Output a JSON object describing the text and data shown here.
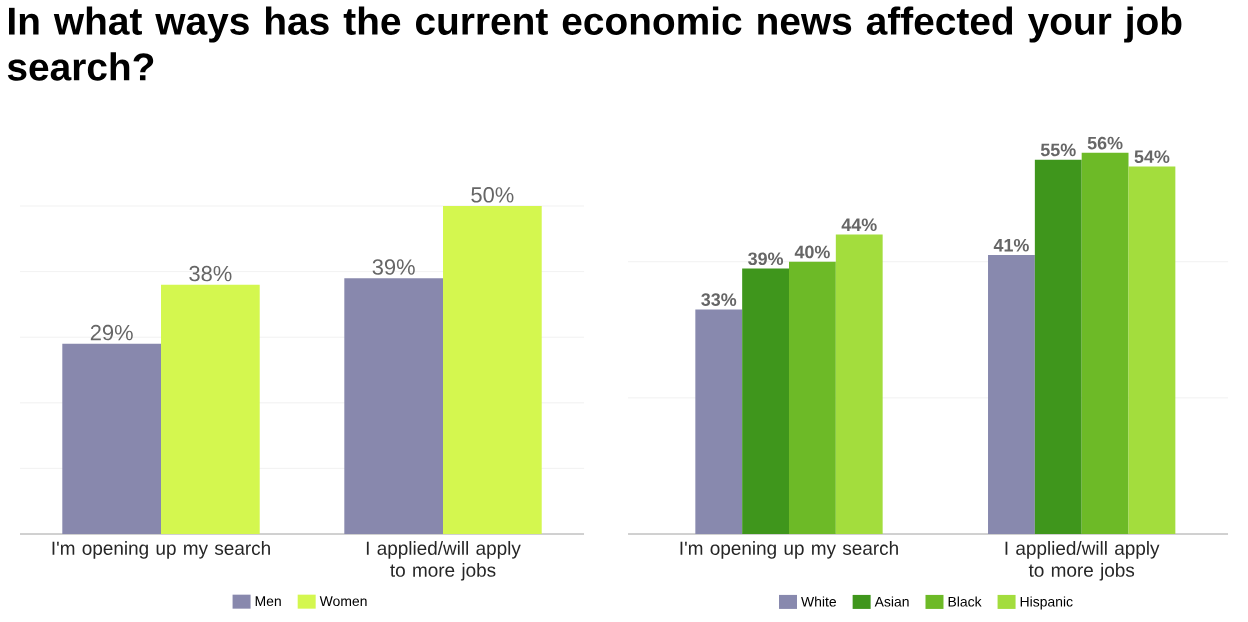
{
  "chart_data": [
    {
      "type": "bar",
      "title": "In what ways has the current economic news affected your job search?",
      "categories": [
        "I'm opening up my search",
        "I applied/will apply to more jobs"
      ],
      "series": [
        {
          "name": "Men",
          "color": "#8888ad",
          "values": [
            29,
            39
          ],
          "value_labels": [
            "29%",
            "39%"
          ]
        },
        {
          "name": "Women",
          "color": "#d4f74f",
          "values": [
            38,
            50
          ],
          "value_labels": [
            "38%",
            "50%"
          ]
        }
      ],
      "ylim": [
        0,
        50
      ],
      "yticks": [
        {
          "value": 10,
          "label": null
        },
        {
          "value": 20,
          "label": null
        },
        {
          "value": 30,
          "label": null
        },
        {
          "value": 40,
          "label": null
        },
        {
          "value": 50,
          "label": null
        }
      ],
      "grid": "y",
      "legend": "bottom",
      "tick_labels": "x"
    },
    {
      "type": "bar",
      "categories": [
        "I'm opening up my search",
        "I applied/will apply to more jobs"
      ],
      "series": [
        {
          "name": "White",
          "color": "#8889ae",
          "values": [
            33,
            41
          ],
          "value_labels": [
            "33%",
            "41%"
          ]
        },
        {
          "name": "Asian",
          "color": "#3f961c",
          "values": [
            39,
            55
          ],
          "value_labels": [
            "39%",
            "55%"
          ]
        },
        {
          "name": "Black",
          "color": "#6dba27",
          "values": [
            40,
            56
          ],
          "value_labels": [
            "40%",
            "56%"
          ]
        },
        {
          "name": "Hispanic",
          "color": "#a3dd3d",
          "values": [
            44,
            54
          ],
          "value_labels": [
            "44%",
            "54%"
          ]
        }
      ],
      "ylim": [
        0,
        57
      ],
      "yticks": [
        {
          "value": 20,
          "label": null
        },
        {
          "value": 40,
          "label": null
        }
      ],
      "grid": "y",
      "legend": "bottom",
      "tick_labels": "x"
    }
  ]
}
